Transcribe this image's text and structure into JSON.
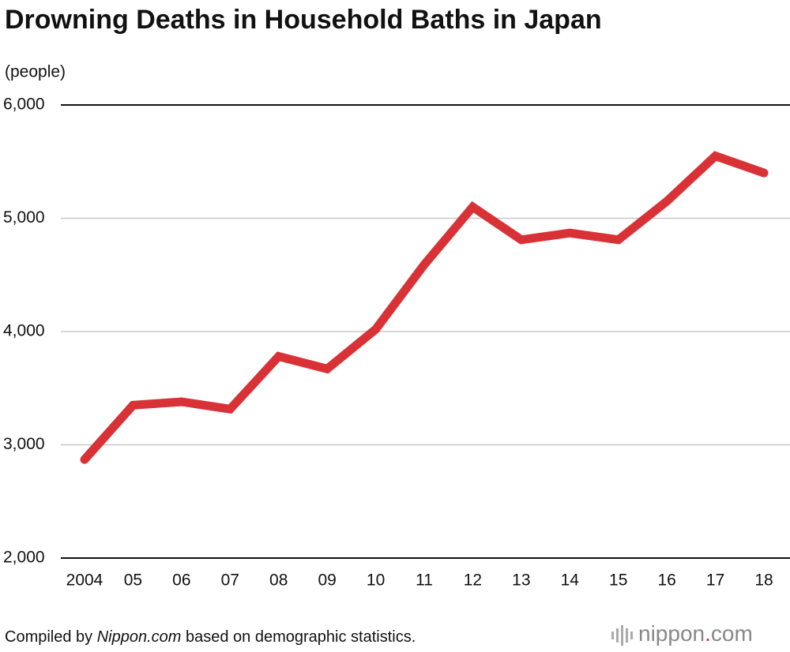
{
  "chart_data": {
    "type": "line",
    "title": "Drowning Deaths in Household Baths in Japan",
    "y_label": "(people)",
    "categories": [
      "2004",
      "05",
      "06",
      "07",
      "08",
      "09",
      "10",
      "11",
      "12",
      "13",
      "14",
      "15",
      "16",
      "17",
      "18"
    ],
    "series": [
      {
        "name": "Drowning deaths",
        "color": "#d93236",
        "values": [
          2870,
          3350,
          3380,
          3315,
          3780,
          3670,
          4020,
          4590,
          5100,
          4810,
          4870,
          4810,
          5150,
          5550,
          5400
        ]
      }
    ],
    "ylim": [
      2000,
      6000
    ],
    "yticks": [
      {
        "value": 2000,
        "label": "2,000"
      },
      {
        "value": 3000,
        "label": "3,000"
      },
      {
        "value": 4000,
        "label": "4,000"
      },
      {
        "value": 5000,
        "label": "5,000"
      },
      {
        "value": 6000,
        "label": "6,000"
      }
    ],
    "grid": true,
    "source": [
      "Compiled by ",
      "Nippon.com",
      " based on demographic statistics."
    ],
    "logo": [
      "nippon",
      ".",
      "com"
    ]
  }
}
